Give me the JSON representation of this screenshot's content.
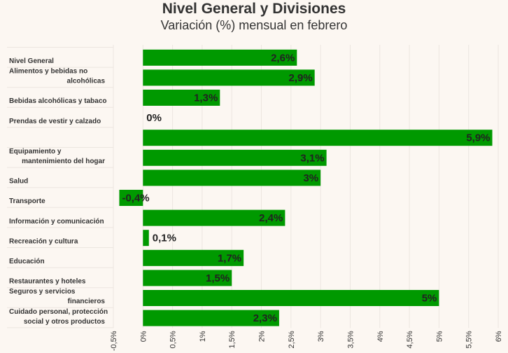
{
  "colors": {
    "background": "#fcf7f2",
    "bar": "#009900",
    "text": "#333333"
  },
  "chart_data": {
    "type": "bar",
    "orientation": "horizontal",
    "title": "Nivel General y Divisiones",
    "subtitle": "Variación (%) mensual en febrero",
    "xlim": [
      -0.5,
      6
    ],
    "ticks": [
      -0.5,
      0,
      0.5,
      1,
      1.5,
      2,
      2.5,
      3,
      3.5,
      4,
      4.5,
      5,
      5.5,
      6
    ],
    "tick_labels": [
      "-0,5%",
      "0%",
      "0,5%",
      "1%",
      "1,5%",
      "2%",
      "2,5%",
      "3%",
      "3,5%",
      "4%",
      "4,5%",
      "5%",
      "5,5%",
      "6%"
    ],
    "categories": [
      "Nivel General",
      "Alimentos y bebidas no alcohólicas",
      "Bebidas alcohólicas y tabaco",
      "Prendas de vestir y calzado",
      "",
      "Equipamiento y mantenimiento del hogar",
      "Salud",
      "Transporte",
      "Información y comunicación",
      "Recreación y cultura",
      "Educación",
      "Restaurantes y hoteles",
      "Seguros y servicios financieros",
      "Cuidado personal, protección social y otros productos"
    ],
    "values": [
      2.6,
      2.9,
      1.3,
      0,
      5.9,
      3.1,
      3.0,
      -0.4,
      2.4,
      0.1,
      1.7,
      1.5,
      5.0,
      2.3
    ],
    "value_labels": [
      "2,6%",
      "2,9%",
      "1,3%",
      "0%",
      "5,9%",
      "3,1%",
      "3%",
      "-0,4%",
      "2,4%",
      "0,1%",
      "1,7%",
      "1,5%",
      "5%",
      "2,3%"
    ]
  }
}
